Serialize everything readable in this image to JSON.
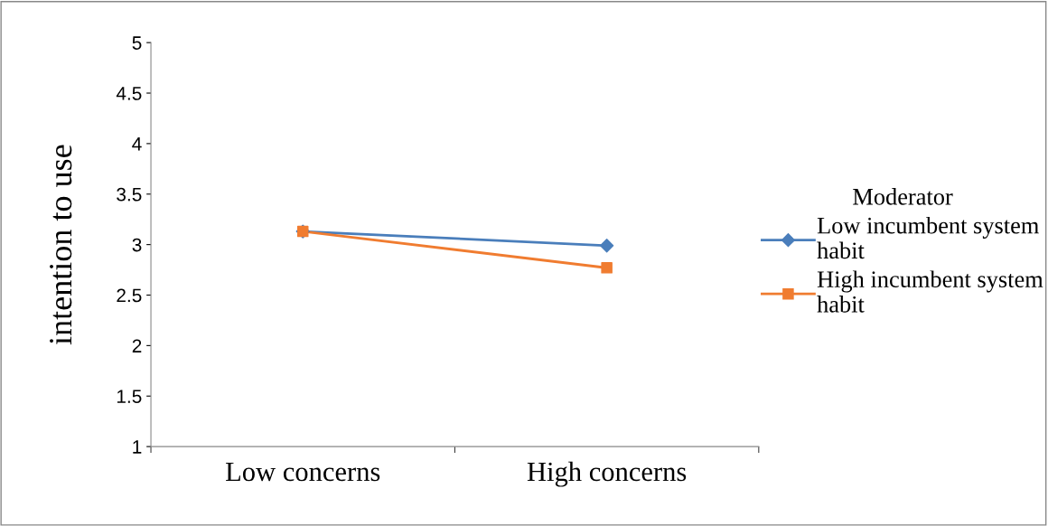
{
  "chart_data": {
    "type": "line",
    "ylabel": "intention to use",
    "legend_title": "Moderator",
    "categories": [
      "Low concerns",
      "High concerns"
    ],
    "series": [
      {
        "name": "Low incumbent system habit",
        "color": "#4a7ebb",
        "values": [
          3.13,
          2.99
        ],
        "marker": "diamond"
      },
      {
        "name": "High incumbent system habit",
        "color": "#f07c30",
        "values": [
          3.13,
          2.77
        ],
        "marker": "square"
      }
    ],
    "ylim": [
      1,
      5
    ],
    "yticks": [
      1,
      1.5,
      2,
      2.5,
      3,
      3.5,
      4,
      4.5,
      5
    ],
    "grid": false,
    "legend": "right"
  }
}
